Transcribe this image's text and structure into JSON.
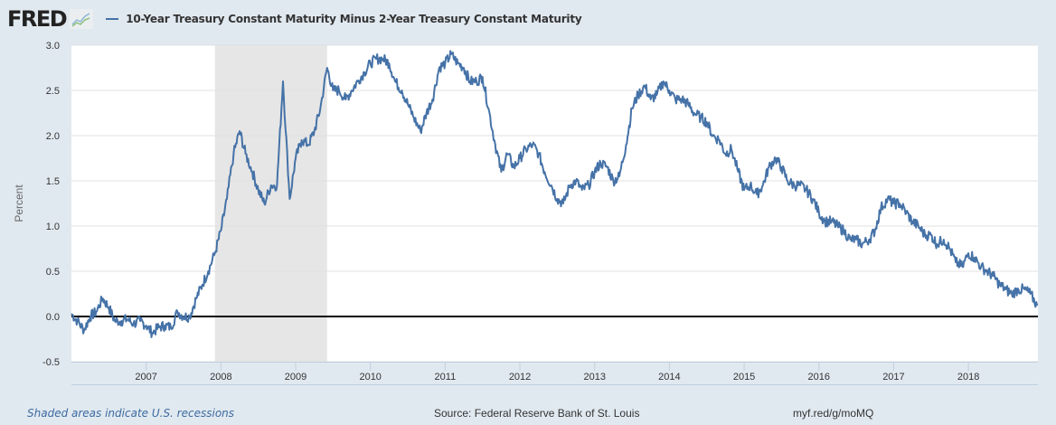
{
  "header": {
    "logo_text": "FRED",
    "logo_icon": "chart-line-icon",
    "series_title": "10-Year Treasury Constant Maturity Minus 2-Year Treasury Constant Maturity",
    "series_color": "#4572a7"
  },
  "footer": {
    "recession_note": "Shaded areas indicate U.S. recessions",
    "source": "Source: Federal Reserve Bank of St. Louis",
    "short_url": "myf.red/g/moMQ"
  },
  "chart_data": {
    "type": "line",
    "title": "10-Year Treasury Constant Maturity Minus 2-Year Treasury Constant Maturity",
    "xlabel": "",
    "ylabel": "Percent",
    "xlim": [
      2006.0,
      2018.93
    ],
    "ylim": [
      -0.5,
      3.0
    ],
    "yticks": [
      -0.5,
      0.0,
      0.5,
      1.0,
      1.5,
      2.0,
      2.5,
      3.0
    ],
    "ytick_labels": [
      "-0.5",
      "0.0",
      "0.5",
      "1.0",
      "1.5",
      "2.0",
      "2.5",
      "3.0"
    ],
    "xticks": [
      2007,
      2008,
      2009,
      2010,
      2011,
      2012,
      2013,
      2014,
      2015,
      2016,
      2017,
      2018
    ],
    "xtick_labels": [
      "2007",
      "2008",
      "2009",
      "2010",
      "2011",
      "2012",
      "2013",
      "2014",
      "2015",
      "2016",
      "2017",
      "2018"
    ],
    "grid": true,
    "zero_line": true,
    "legend": "top-left",
    "recessions": [
      {
        "start": 2007.92,
        "end": 2009.42,
        "color": "#e6e6e6"
      }
    ],
    "series": [
      {
        "name": "10-Year Treasury Constant Maturity Minus 2-Year Treasury Constant Maturity",
        "color": "#4572a7",
        "x": [
          2006.0,
          2006.08,
          2006.17,
          2006.25,
          2006.33,
          2006.42,
          2006.5,
          2006.58,
          2006.67,
          2006.75,
          2006.83,
          2006.92,
          2007.0,
          2007.08,
          2007.17,
          2007.25,
          2007.33,
          2007.42,
          2007.5,
          2007.58,
          2007.67,
          2007.75,
          2007.83,
          2007.92,
          2008.0,
          2008.08,
          2008.17,
          2008.25,
          2008.33,
          2008.42,
          2008.5,
          2008.58,
          2008.67,
          2008.75,
          2008.83,
          2008.92,
          2009.0,
          2009.08,
          2009.17,
          2009.25,
          2009.33,
          2009.42,
          2009.5,
          2009.58,
          2009.67,
          2009.75,
          2009.83,
          2009.92,
          2010.0,
          2010.08,
          2010.17,
          2010.25,
          2010.33,
          2010.42,
          2010.5,
          2010.58,
          2010.67,
          2010.75,
          2010.83,
          2010.92,
          2011.0,
          2011.08,
          2011.17,
          2011.25,
          2011.33,
          2011.42,
          2011.5,
          2011.58,
          2011.67,
          2011.75,
          2011.83,
          2011.92,
          2012.0,
          2012.08,
          2012.17,
          2012.25,
          2012.33,
          2012.42,
          2012.5,
          2012.58,
          2012.67,
          2012.75,
          2012.83,
          2012.92,
          2013.0,
          2013.08,
          2013.17,
          2013.25,
          2013.33,
          2013.42,
          2013.5,
          2013.58,
          2013.67,
          2013.75,
          2013.83,
          2013.92,
          2014.0,
          2014.08,
          2014.17,
          2014.25,
          2014.33,
          2014.42,
          2014.5,
          2014.58,
          2014.67,
          2014.75,
          2014.83,
          2014.92,
          2015.0,
          2015.08,
          2015.17,
          2015.25,
          2015.33,
          2015.42,
          2015.5,
          2015.58,
          2015.67,
          2015.75,
          2015.83,
          2015.92,
          2016.0,
          2016.08,
          2016.17,
          2016.25,
          2016.33,
          2016.42,
          2016.5,
          2016.58,
          2016.67,
          2016.75,
          2016.83,
          2016.92,
          2017.0,
          2017.08,
          2017.17,
          2017.25,
          2017.33,
          2017.42,
          2017.5,
          2017.58,
          2017.67,
          2017.75,
          2017.83,
          2017.92,
          2018.0,
          2018.08,
          2018.17,
          2018.25,
          2018.33,
          2018.42,
          2018.5,
          2018.58,
          2018.67,
          2018.75,
          2018.83,
          2018.92
        ],
        "values": [
          0.03,
          -0.05,
          -0.15,
          0.0,
          0.05,
          0.2,
          0.1,
          -0.05,
          -0.05,
          -0.03,
          -0.08,
          -0.05,
          -0.1,
          -0.18,
          -0.12,
          -0.1,
          -0.12,
          0.05,
          0.0,
          0.0,
          0.2,
          0.35,
          0.5,
          0.7,
          0.95,
          1.3,
          1.8,
          2.05,
          1.8,
          1.6,
          1.4,
          1.25,
          1.45,
          1.45,
          2.6,
          1.3,
          1.75,
          1.95,
          1.9,
          2.05,
          2.3,
          2.75,
          2.5,
          2.5,
          2.4,
          2.5,
          2.6,
          2.7,
          2.8,
          2.85,
          2.85,
          2.8,
          2.6,
          2.5,
          2.35,
          2.2,
          2.05,
          2.25,
          2.4,
          2.75,
          2.8,
          2.9,
          2.8,
          2.75,
          2.6,
          2.6,
          2.65,
          2.3,
          1.9,
          1.6,
          1.8,
          1.65,
          1.75,
          1.85,
          1.9,
          1.8,
          1.6,
          1.45,
          1.3,
          1.25,
          1.45,
          1.5,
          1.4,
          1.45,
          1.6,
          1.7,
          1.65,
          1.5,
          1.55,
          1.9,
          2.3,
          2.45,
          2.55,
          2.4,
          2.45,
          2.6,
          2.5,
          2.4,
          2.4,
          2.35,
          2.25,
          2.2,
          2.15,
          2.0,
          1.95,
          1.8,
          1.85,
          1.6,
          1.4,
          1.45,
          1.35,
          1.45,
          1.65,
          1.75,
          1.65,
          1.5,
          1.45,
          1.45,
          1.4,
          1.3,
          1.15,
          1.05,
          1.05,
          1.0,
          0.95,
          0.85,
          0.85,
          0.8,
          0.85,
          0.95,
          1.2,
          1.3,
          1.25,
          1.25,
          1.15,
          1.05,
          1.0,
          0.9,
          0.9,
          0.8,
          0.85,
          0.75,
          0.6,
          0.55,
          0.7,
          0.65,
          0.55,
          0.5,
          0.45,
          0.35,
          0.3,
          0.25,
          0.3,
          0.3,
          0.25,
          0.12
        ]
      }
    ]
  }
}
